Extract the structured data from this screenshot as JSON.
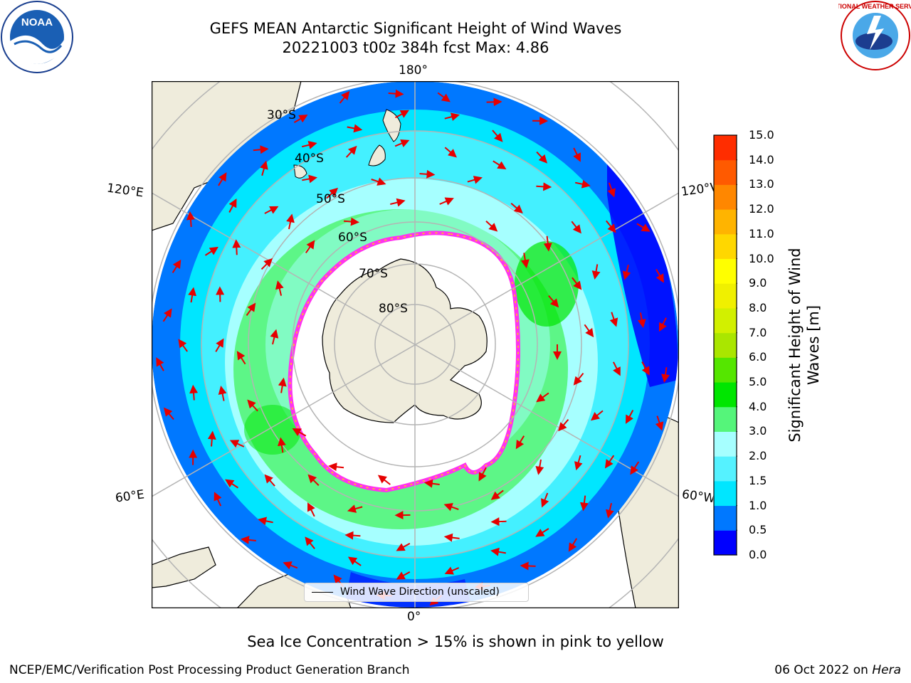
{
  "title": {
    "line1": "GEFS MEAN Antarctic Significant Height of Wind Waves",
    "line2": "20221003 t00z 384h fcst   Max: 4.86"
  },
  "map": {
    "projection": "south-polar-stereographic",
    "longitude_labels": {
      "top": "180°",
      "bottom": "0°",
      "upper_left": "120°E",
      "upper_right": "120°W",
      "lower_left": "60°E",
      "lower_right": "60°W"
    },
    "latitude_labels": [
      "30°S",
      "40°S",
      "50°S",
      "60°S",
      "70°S",
      "80°S"
    ],
    "colors": {
      "land": "#efecdc",
      "grid": "#b4b4b4",
      "arrow": "#e60000",
      "sea_ice": "#ff33ee"
    }
  },
  "legend": {
    "label": "Wind Wave Direction (unscaled)"
  },
  "colorbar": {
    "label_line1": "Significant Height of Wind",
    "label_line2": "Waves [m]",
    "ticks": [
      "0.0",
      "0.5",
      "1.0",
      "1.5",
      "2.0",
      "3.0",
      "4.0",
      "5.0",
      "6.0",
      "7.0",
      "8.0",
      "9.0",
      "10.0",
      "11.0",
      "12.0",
      "13.0",
      "14.0",
      "15.0"
    ],
    "colors": [
      "#0000ff",
      "#0078ff",
      "#00e6ff",
      "#55f2ff",
      "#a6ffff",
      "#55f57a",
      "#00e600",
      "#55e600",
      "#aae600",
      "#d2f000",
      "#f0f000",
      "#ffff00",
      "#ffd700",
      "#ffb400",
      "#ff8700",
      "#ff5a00",
      "#ff2d00"
    ]
  },
  "caption": "Sea Ice Concentration > 15% is shown in pink to yellow",
  "footer": {
    "left": "NCEP/EMC/Verification Post Processing Product Generation Branch",
    "right_date": "06 Oct 2022 on ",
    "right_host": "Hera"
  },
  "logos": {
    "left_text": "NOAA",
    "right_text": "NATIONAL WEATHER SERVICE"
  }
}
